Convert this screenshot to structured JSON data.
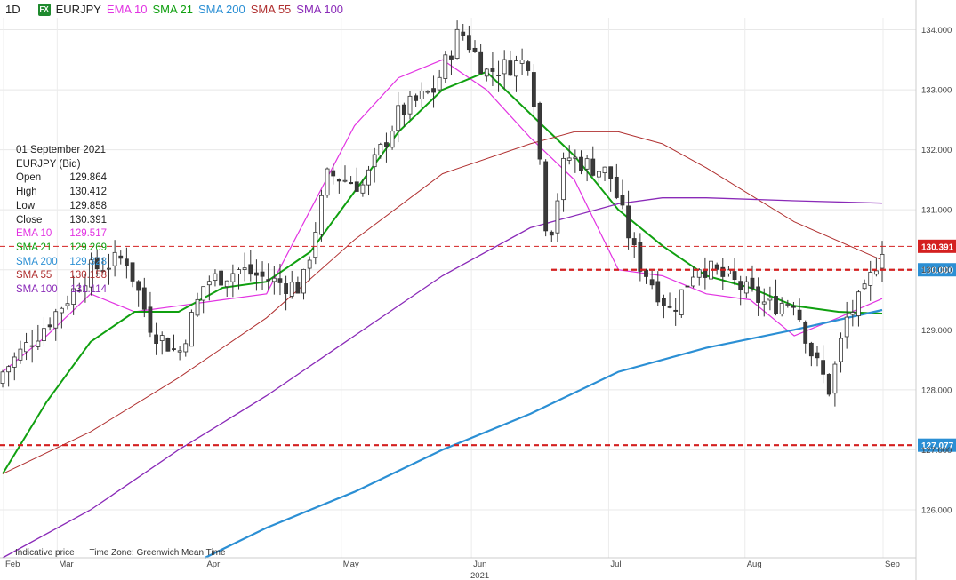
{
  "header": {
    "timeframe": "1D",
    "badge": "FX",
    "symbol": "EURJPY",
    "indicators": [
      {
        "name": "EMA 10",
        "color": "#e233e2"
      },
      {
        "name": "SMA 21",
        "color": "#10a010"
      },
      {
        "name": "SMA 200",
        "color": "#2b8fd4"
      },
      {
        "name": "SMA 55",
        "color": "#b03030"
      },
      {
        "name": "SMA 100",
        "color": "#8a2ab8"
      }
    ]
  },
  "info_panel": {
    "date": "01 September 2021",
    "instrument": "EURJPY (Bid)",
    "rows": [
      {
        "label": "Open",
        "value": "129.864",
        "color": "#222"
      },
      {
        "label": "High",
        "value": "130.412",
        "color": "#222"
      },
      {
        "label": "Low",
        "value": "129.858",
        "color": "#222"
      },
      {
        "label": "Close",
        "value": "130.391",
        "color": "#222"
      },
      {
        "label": "EMA 10",
        "value": "129.517",
        "color": "#e233e2"
      },
      {
        "label": "SMA 21",
        "value": "129.269",
        "color": "#10a010"
      },
      {
        "label": "SMA 200",
        "value": "129.328",
        "color": "#2b8fd4"
      },
      {
        "label": "SMA 55",
        "value": "130.158",
        "color": "#b03030"
      },
      {
        "label": "SMA 100",
        "value": "131.114",
        "color": "#8a2ab8"
      }
    ]
  },
  "footer": {
    "left": "Indicative price",
    "right": "Time Zone: Greenwich Mean Time"
  },
  "chart_data": {
    "type": "line",
    "instrument": "EURJPY",
    "y_ticks": [
      "126.000",
      "127.000",
      "128.000",
      "129.000",
      "130.000",
      "131.000",
      "132.000",
      "133.000",
      "134.000"
    ],
    "ylim": [
      125.2,
      134.2
    ],
    "x_ticks": [
      "Feb",
      "Mar",
      "Apr",
      "May",
      "Jun",
      "Jul",
      "Aug",
      "Sep"
    ],
    "x_year": "2021",
    "price_labels": [
      {
        "text": "130.391",
        "value": 130.391,
        "color": "#d42020",
        "line": "dash-thin"
      },
      {
        "text": "130.000",
        "value": 130.0,
        "color": "#2b8fd4",
        "line": "dash-thick",
        "line_color": "#d42020"
      },
      {
        "text": "127.077",
        "value": 127.077,
        "color": "#2b8fd4",
        "line": "dash-thick",
        "line_color": "#d42020"
      }
    ],
    "series": [
      {
        "name": "EMA 10",
        "color": "#e233e2",
        "x": [
          0,
          0.05,
          0.1,
          0.15,
          0.2,
          0.25,
          0.3,
          0.35,
          0.4,
          0.45,
          0.5,
          0.55,
          0.6,
          0.65,
          0.7,
          0.75,
          0.8,
          0.85,
          0.9,
          0.95,
          1.0
        ],
        "values": [
          128.3,
          128.9,
          129.6,
          129.3,
          129.4,
          129.5,
          129.6,
          131.0,
          132.4,
          133.2,
          133.5,
          133.0,
          132.2,
          131.5,
          130.0,
          129.9,
          129.6,
          129.5,
          128.9,
          129.2,
          129.52
        ]
      },
      {
        "name": "SMA 21",
        "color": "#10a010",
        "x": [
          0,
          0.05,
          0.1,
          0.15,
          0.2,
          0.25,
          0.3,
          0.35,
          0.4,
          0.45,
          0.5,
          0.55,
          0.6,
          0.65,
          0.7,
          0.75,
          0.8,
          0.85,
          0.9,
          0.95,
          1.0
        ],
        "values": [
          126.6,
          127.8,
          128.8,
          129.3,
          129.3,
          129.7,
          129.8,
          130.3,
          131.3,
          132.3,
          133.0,
          133.3,
          132.6,
          131.9,
          131.0,
          130.4,
          129.9,
          129.7,
          129.4,
          129.3,
          129.27
        ]
      },
      {
        "name": "SMA 55",
        "color": "#b03030",
        "x": [
          0,
          0.1,
          0.2,
          0.3,
          0.4,
          0.5,
          0.6,
          0.65,
          0.7,
          0.75,
          0.8,
          0.9,
          1.0
        ],
        "values": [
          126.6,
          127.3,
          128.2,
          129.2,
          130.5,
          131.6,
          132.1,
          132.3,
          132.3,
          132.1,
          131.7,
          130.8,
          130.16
        ]
      },
      {
        "name": "SMA 100",
        "color": "#8a2ab8",
        "x": [
          0,
          0.1,
          0.2,
          0.3,
          0.4,
          0.5,
          0.6,
          0.7,
          0.75,
          0.8,
          0.9,
          1.0
        ],
        "values": [
          125.2,
          126.0,
          127.0,
          127.9,
          128.9,
          129.9,
          130.7,
          131.1,
          131.2,
          131.2,
          131.15,
          131.11
        ]
      },
      {
        "name": "SMA 200",
        "color": "#2b8fd4",
        "x": [
          0.23,
          0.3,
          0.4,
          0.5,
          0.6,
          0.7,
          0.8,
          0.9,
          1.0
        ],
        "values": [
          125.2,
          125.7,
          126.3,
          127.0,
          127.6,
          128.3,
          128.7,
          129.0,
          129.33
        ]
      }
    ],
    "candles": {
      "count": 150,
      "close_path": [
        {
          "x": 0.0,
          "v": 128.3
        },
        {
          "x": 0.05,
          "v": 129.1
        },
        {
          "x": 0.1,
          "v": 130.0
        },
        {
          "x": 0.14,
          "v": 130.2
        },
        {
          "x": 0.17,
          "v": 129.0
        },
        {
          "x": 0.2,
          "v": 128.6
        },
        {
          "x": 0.23,
          "v": 129.8
        },
        {
          "x": 0.27,
          "v": 130.0
        },
        {
          "x": 0.31,
          "v": 129.8
        },
        {
          "x": 0.34,
          "v": 129.7
        },
        {
          "x": 0.37,
          "v": 131.6
        },
        {
          "x": 0.41,
          "v": 131.4
        },
        {
          "x": 0.45,
          "v": 132.6
        },
        {
          "x": 0.49,
          "v": 133.0
        },
        {
          "x": 0.52,
          "v": 134.0
        },
        {
          "x": 0.55,
          "v": 133.3
        },
        {
          "x": 0.6,
          "v": 133.5
        },
        {
          "x": 0.62,
          "v": 130.4
        },
        {
          "x": 0.64,
          "v": 131.9
        },
        {
          "x": 0.69,
          "v": 131.6
        },
        {
          "x": 0.72,
          "v": 130.2
        },
        {
          "x": 0.76,
          "v": 129.3
        },
        {
          "x": 0.79,
          "v": 130.1
        },
        {
          "x": 0.83,
          "v": 129.8
        },
        {
          "x": 0.87,
          "v": 129.4
        },
        {
          "x": 0.9,
          "v": 129.5
        },
        {
          "x": 0.92,
          "v": 128.6
        },
        {
          "x": 0.94,
          "v": 128.0
        },
        {
          "x": 0.96,
          "v": 129.2
        },
        {
          "x": 0.98,
          "v": 129.6
        },
        {
          "x": 1.0,
          "v": 130.39
        }
      ]
    }
  }
}
